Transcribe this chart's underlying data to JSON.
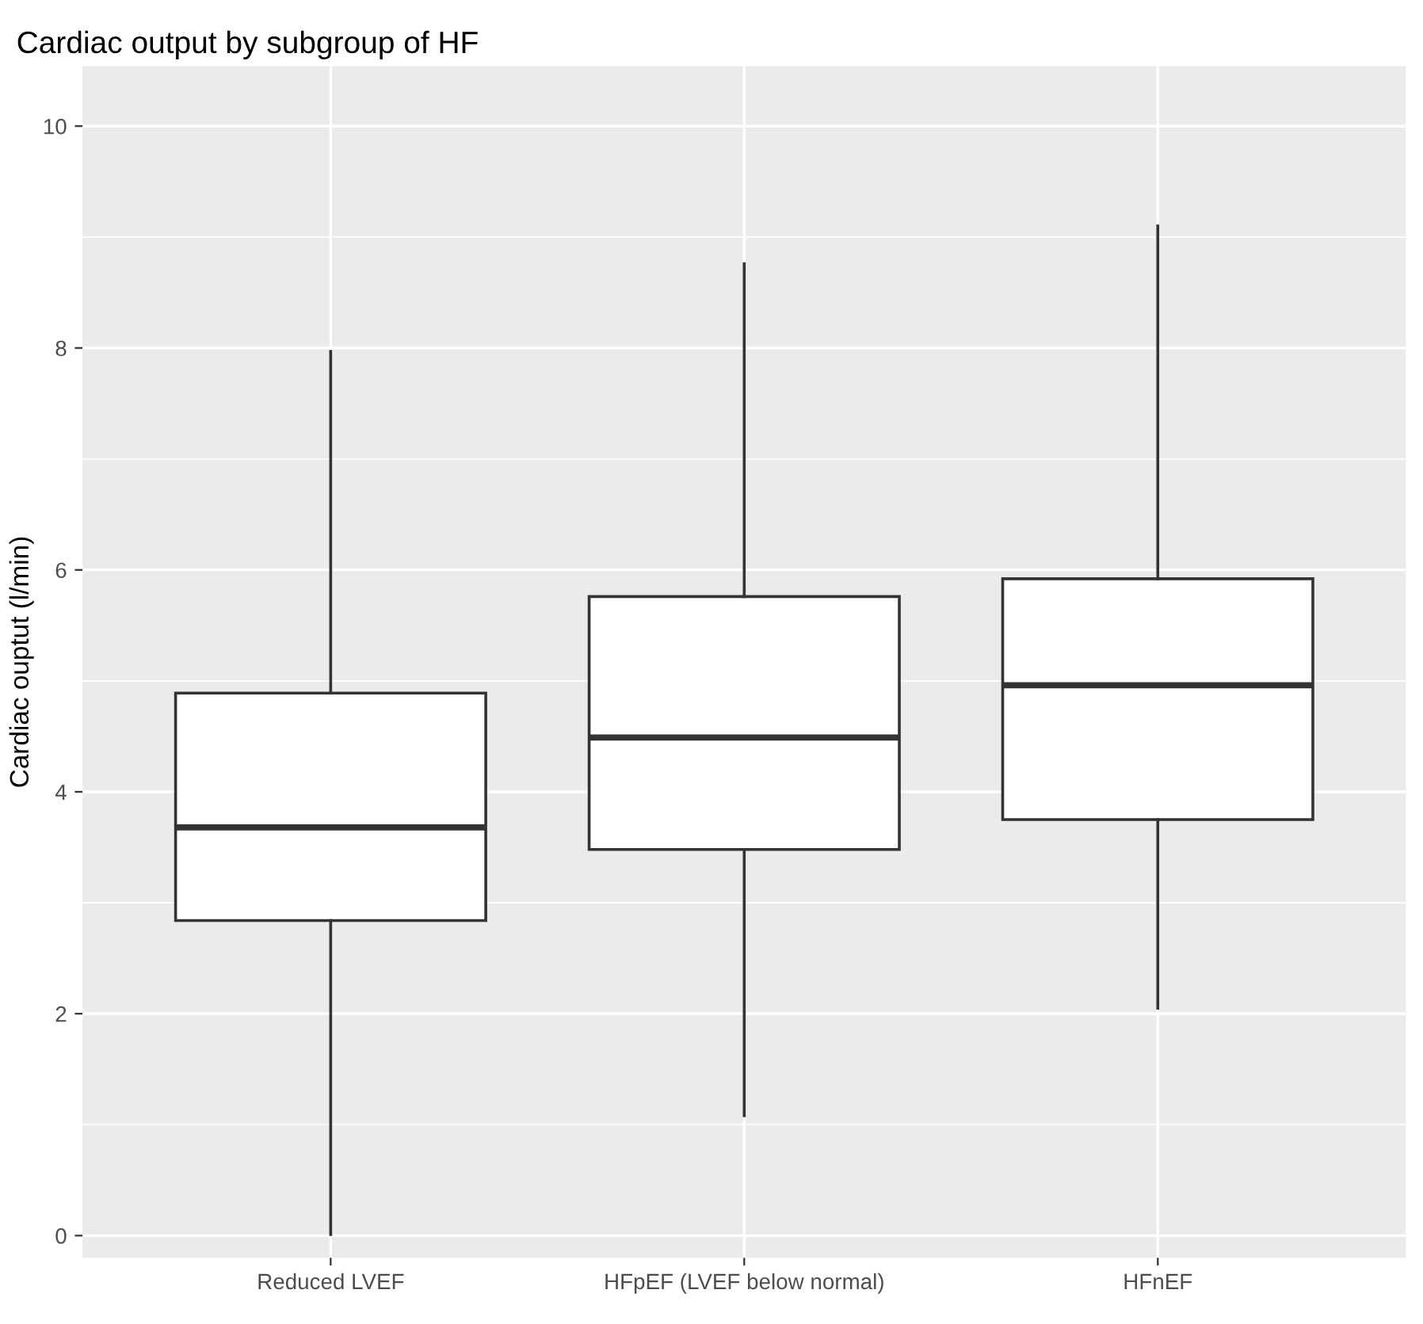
{
  "chart_data": {
    "type": "box",
    "title": "Cardiac output by subgroup of HF",
    "ylabel": "Cardiac ouptut (l/min)",
    "categories": [
      "Reduced LVEF",
      "HFpEF (LVEF below normal)",
      "HFnEF"
    ],
    "boxes": [
      {
        "low": 0.01,
        "q1": 2.84,
        "median": 3.68,
        "q3": 4.89,
        "high": 7.97
      },
      {
        "low": 1.08,
        "q1": 3.48,
        "median": 4.49,
        "q3": 5.76,
        "high": 8.76
      },
      {
        "low": 2.05,
        "q1": 3.75,
        "median": 4.96,
        "q3": 5.92,
        "high": 9.1
      }
    ],
    "ylim": [
      -0.2,
      10.54
    ],
    "yticks": [
      0,
      2,
      4,
      6,
      8,
      10
    ],
    "grid": true
  }
}
